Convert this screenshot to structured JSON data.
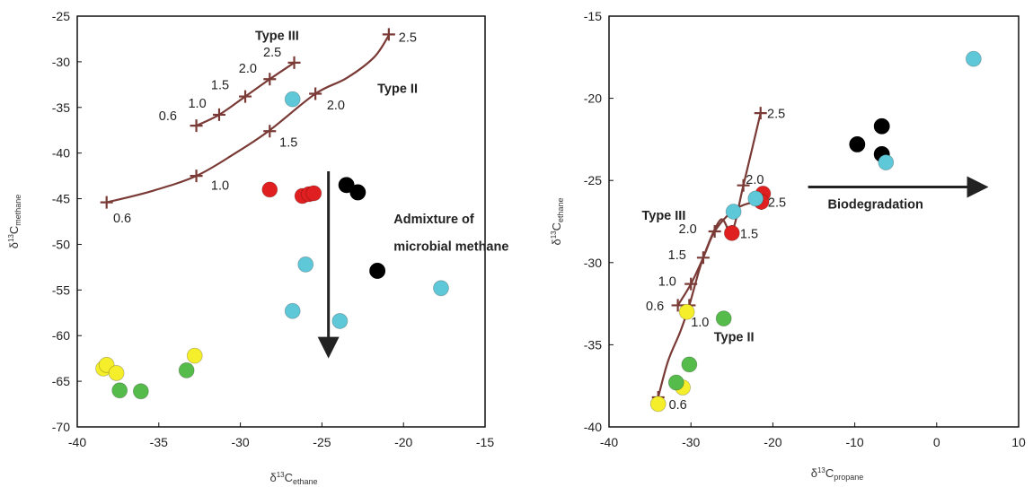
{
  "colors": {
    "curve": "#7a3a36",
    "red": "#e02020",
    "black": "#000000",
    "cyan": "#5fc8d8",
    "yellow": "#f5ee2a",
    "green": "#55bb4a",
    "arrow": "#222222"
  },
  "chart_data": [
    {
      "type": "scatter",
      "title": "",
      "xlabel": {
        "prefix": "δ",
        "sup": "13",
        "main": "C",
        "sub": "ethane"
      },
      "ylabel": {
        "prefix": "δ",
        "sup": "13",
        "main": "C",
        "sub": "methane"
      },
      "xlim": [
        -40,
        -15
      ],
      "ylim": [
        -70,
        -25
      ],
      "xticks": [
        "-40",
        "-35",
        "-30",
        "-25",
        "-20",
        "-15"
      ],
      "yticks": [
        "-25",
        "-30",
        "-35",
        "-40",
        "-45",
        "-50",
        "-55",
        "-60",
        "-65",
        "-70"
      ],
      "grid": false,
      "curves": [
        {
          "name": "Type III",
          "path": [
            [
              -32.7,
              -37.0
            ],
            [
              -31.3,
              -35.8
            ],
            [
              -29.7,
              -33.8
            ],
            [
              -28.2,
              -31.9
            ],
            [
              -26.7,
              -30.1
            ]
          ],
          "markers": [
            [
              -32.7,
              -37.0
            ],
            [
              -31.3,
              -35.8
            ],
            [
              -29.7,
              -33.8
            ],
            [
              -28.2,
              -31.9
            ],
            [
              -26.7,
              -30.1
            ]
          ],
          "labels": [
            {
              "text": "0.6",
              "x": -35.0,
              "y": -36.4
            },
            {
              "text": "1.0",
              "x": -33.2,
              "y": -35.0
            },
            {
              "text": "1.5",
              "x": -31.8,
              "y": -33.0
            },
            {
              "text": "2.0",
              "x": -30.1,
              "y": -31.2
            },
            {
              "text": "2.5",
              "x": -28.6,
              "y": -29.4
            }
          ]
        },
        {
          "name": "Type II",
          "path": [
            [
              -38.2,
              -45.4
            ],
            [
              -35.5,
              -44.2
            ],
            [
              -32.7,
              -42.5
            ],
            [
              -30.3,
              -40.0
            ],
            [
              -28.2,
              -37.5
            ],
            [
              -25.4,
              -33.5
            ],
            [
              -23.5,
              -31.8
            ],
            [
              -21.8,
              -29.5
            ],
            [
              -20.9,
              -27.1
            ]
          ],
          "markers": [
            [
              -38.2,
              -45.4
            ],
            [
              -32.7,
              -42.5
            ],
            [
              -28.2,
              -37.6
            ],
            [
              -25.4,
              -33.5
            ],
            [
              -20.9,
              -27.0
            ]
          ],
          "labels": [
            {
              "text": "0.6",
              "x": -37.8,
              "y": -47.6
            },
            {
              "text": "1.0",
              "x": -31.8,
              "y": -44.0
            },
            {
              "text": "1.5",
              "x": -27.6,
              "y": -39.3
            },
            {
              "text": "2.0",
              "x": -24.7,
              "y": -35.2
            },
            {
              "text": "2.5",
              "x": -20.3,
              "y": -27.8
            }
          ]
        }
      ],
      "series": [
        {
          "color": "red",
          "points": [
            [
              -28.2,
              -44.0
            ],
            [
              -26.2,
              -44.7
            ],
            [
              -25.8,
              -44.5
            ],
            [
              -25.5,
              -44.4
            ]
          ]
        },
        {
          "color": "black",
          "points": [
            [
              -23.5,
              -43.5
            ],
            [
              -22.8,
              -44.3
            ],
            [
              -21.6,
              -52.9
            ]
          ]
        },
        {
          "color": "cyan",
          "points": [
            [
              -26.8,
              -34.1
            ],
            [
              -26.0,
              -52.2
            ],
            [
              -26.8,
              -57.3
            ],
            [
              -23.9,
              -58.4
            ],
            [
              -17.7,
              -54.8
            ]
          ]
        },
        {
          "color": "yellow",
          "points": [
            [
              -38.4,
              -63.6
            ],
            [
              -38.2,
              -63.2
            ],
            [
              -37.6,
              -64.1
            ],
            [
              -32.8,
              -62.2
            ]
          ]
        },
        {
          "color": "green",
          "points": [
            [
              -37.4,
              -66.0
            ],
            [
              -36.1,
              -66.1
            ],
            [
              -33.3,
              -63.8
            ]
          ]
        }
      ],
      "annotations": [
        {
          "text": "Type III",
          "x": -29.1,
          "y": -27.6
        },
        {
          "text": "Type II",
          "x": -21.6,
          "y": -33.4
        },
        {
          "text": "Admixture of",
          "x": -20.6,
          "y": -47.7
        },
        {
          "text": "microbial methane",
          "x": -20.6,
          "y": -50.7
        }
      ],
      "arrows": [
        {
          "from": [
            -24.6,
            -42.0
          ],
          "to": [
            -24.6,
            -62.2
          ]
        }
      ]
    },
    {
      "type": "scatter",
      "title": "",
      "xlabel": {
        "prefix": "δ",
        "sup": "13",
        "main": "C",
        "sub": "propane"
      },
      "ylabel": {
        "prefix": "δ",
        "sup": "13",
        "main": "C",
        "sub": "ethane"
      },
      "xlim": [
        -40,
        10
      ],
      "ylim": [
        -40,
        -15
      ],
      "xticks": [
        "-40",
        "-30",
        "-20",
        "-10",
        "0",
        "10"
      ],
      "yticks": [
        "-15",
        "-20",
        "-25",
        "-30",
        "-35",
        "-40"
      ],
      "grid": false,
      "curves": [
        {
          "name": "Type III",
          "path": [
            [
              -31.6,
              -32.6
            ],
            [
              -30.0,
              -31.3
            ],
            [
              -28.5,
              -29.7
            ],
            [
              -27.1,
              -28.1
            ],
            [
              -25.0,
              -26.9
            ],
            [
              -23.0,
              -26.4
            ],
            [
              -21.4,
              -26.4
            ]
          ],
          "markers": [
            [
              -31.6,
              -32.6
            ],
            [
              -30.0,
              -31.3
            ],
            [
              -28.5,
              -29.7
            ],
            [
              -27.1,
              -28.1
            ],
            [
              -21.4,
              -26.4
            ]
          ],
          "labels": [
            {
              "text": "0.6",
              "x": -35.5,
              "y": -32.9
            },
            {
              "text": "1.0",
              "x": -34.0,
              "y": -31.4
            },
            {
              "text": "1.5",
              "x": -32.8,
              "y": -29.8
            },
            {
              "text": "2.0",
              "x": -31.5,
              "y": -28.2
            },
            {
              "text": "2.5",
              "x": -20.6,
              "y": -26.6
            }
          ]
        },
        {
          "name": "Type II",
          "path": [
            [
              -34.0,
              -38.2
            ],
            [
              -32.8,
              -36.0
            ],
            [
              -31.3,
              -34.2
            ],
            [
              -30.2,
              -32.6
            ],
            [
              -28.5,
              -29.7
            ],
            [
              -26.4,
              -27.4
            ],
            [
              -25.0,
              -28.1
            ],
            [
              -23.6,
              -25.3
            ],
            [
              -21.5,
              -20.9
            ]
          ],
          "markers": [
            [
              -34.0,
              -38.2
            ],
            [
              -30.2,
              -32.6
            ],
            [
              -25.0,
              -28.1
            ],
            [
              -23.6,
              -25.3
            ],
            [
              -21.5,
              -20.9
            ]
          ],
          "labels": [
            {
              "text": "0.6",
              "x": -32.7,
              "y": -38.9
            },
            {
              "text": "1.0",
              "x": -30.0,
              "y": -33.9
            },
            {
              "text": "1.5",
              "x": -24.0,
              "y": -28.5
            },
            {
              "text": "2.0",
              "x": -23.3,
              "y": -25.2
            },
            {
              "text": "2.5",
              "x": -20.7,
              "y": -21.2
            }
          ]
        }
      ],
      "series": [
        {
          "color": "red",
          "points": [
            [
              -21.2,
              -25.8
            ],
            [
              -21.4,
              -26.3
            ],
            [
              -25.0,
              -28.2
            ]
          ]
        },
        {
          "color": "black",
          "points": [
            [
              -9.7,
              -22.8
            ],
            [
              -6.7,
              -21.7
            ],
            [
              -6.7,
              -23.4
            ]
          ]
        },
        {
          "color": "cyan",
          "points": [
            [
              4.5,
              -17.6
            ],
            [
              -6.2,
              -23.9
            ],
            [
              -22.1,
              -26.1
            ],
            [
              -24.8,
              -26.9
            ]
          ]
        },
        {
          "color": "yellow",
          "points": [
            [
              -30.5,
              -33.0
            ],
            [
              -34.0,
              -38.6
            ],
            [
              -31.0,
              -37.6
            ]
          ]
        },
        {
          "color": "green",
          "points": [
            [
              -26.0,
              -33.4
            ],
            [
              -30.2,
              -36.2
            ],
            [
              -31.8,
              -37.3
            ]
          ]
        }
      ],
      "annotations": [
        {
          "text": "Type III",
          "x": -36.0,
          "y": -27.4
        },
        {
          "text": "Type II",
          "x": -27.2,
          "y": -34.8
        },
        {
          "text": "Biodegradation",
          "x": -13.3,
          "y": -26.7
        }
      ],
      "arrows": [
        {
          "from": [
            -15.7,
            -25.4
          ],
          "to": [
            6.0,
            -25.4
          ]
        }
      ]
    }
  ]
}
